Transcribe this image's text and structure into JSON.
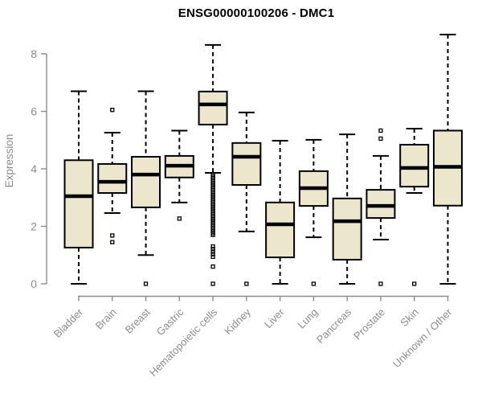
{
  "chart_data": {
    "type": "boxplot",
    "title": "ENSG00000100206 - DMC1",
    "ylabel": "Expression",
    "xlabel": "",
    "ylim": [
      0,
      8
    ],
    "yticks": [
      0,
      2,
      4,
      6,
      8
    ],
    "grid": false,
    "legend": false,
    "whisker_linestyle": "dashed",
    "outlier_marker": "open-square",
    "colors": {
      "box_fill": "#ece7cc",
      "box_border": "#000000",
      "median": "#000000",
      "axis": "#8c8c8c",
      "tick_label": "#8c8c8c",
      "title": "#000000"
    },
    "categories": [
      "Bladder",
      "Brain",
      "Breast",
      "Gastric",
      "Hematopoietic cells",
      "Kidney",
      "Liver",
      "Lung",
      "Pancreas",
      "Prostate",
      "Skin",
      "Unknown / Other"
    ],
    "boxes": [
      {
        "category": "Bladder",
        "low": 0,
        "q1": 1.26,
        "median": 3.05,
        "q3": 4.3,
        "high": 6.7,
        "outliers": []
      },
      {
        "category": "Brain",
        "low": 2.46,
        "q1": 3.16,
        "median": 3.55,
        "q3": 4.17,
        "high": 5.26,
        "outliers": [
          6.05,
          1.68,
          1.45
        ]
      },
      {
        "category": "Breast",
        "low": 1.0,
        "q1": 2.66,
        "median": 3.8,
        "q3": 4.42,
        "high": 6.7,
        "outliers": [
          0
        ]
      },
      {
        "category": "Gastric",
        "low": 2.83,
        "q1": 3.7,
        "median": 4.11,
        "q3": 4.45,
        "high": 5.33,
        "outliers": [
          2.27
        ]
      },
      {
        "category": "Hematopoietic cells",
        "low": 3.86,
        "q1": 5.54,
        "median": 6.24,
        "q3": 6.69,
        "high": 8.31,
        "outliers": [
          3.8,
          3.74,
          3.68,
          3.62,
          3.56,
          3.5,
          3.44,
          3.38,
          3.32,
          3.26,
          3.2,
          3.14,
          3.08,
          3.02,
          2.96,
          2.9,
          2.84,
          2.78,
          2.72,
          2.66,
          2.6,
          2.54,
          2.48,
          2.42,
          2.36,
          2.3,
          2.24,
          2.18,
          2.12,
          2.06,
          2.0,
          1.94,
          1.88,
          1.82,
          1.76,
          1.7,
          1.3,
          1.21,
          1.12,
          1.03,
          0.94,
          0.6,
          0
        ]
      },
      {
        "category": "Kidney",
        "low": 1.82,
        "q1": 3.44,
        "median": 4.42,
        "q3": 4.9,
        "high": 5.96,
        "outliers": [
          0
        ]
      },
      {
        "category": "Liver",
        "low": 0,
        "q1": 0.92,
        "median": 2.07,
        "q3": 2.83,
        "high": 4.98,
        "outliers": []
      },
      {
        "category": "Lung",
        "low": 1.62,
        "q1": 2.71,
        "median": 3.33,
        "q3": 3.92,
        "high": 5.01,
        "outliers": [
          0
        ]
      },
      {
        "category": "Pancreas",
        "low": 0,
        "q1": 0.84,
        "median": 2.18,
        "q3": 2.97,
        "high": 5.2,
        "outliers": []
      },
      {
        "category": "Prostate",
        "low": 1.54,
        "q1": 2.29,
        "median": 2.71,
        "q3": 3.27,
        "high": 4.45,
        "outliers": [
          5.33,
          5.05,
          0
        ]
      },
      {
        "category": "Skin",
        "low": 3.16,
        "q1": 3.38,
        "median": 4.03,
        "q3": 4.84,
        "high": 5.4,
        "outliers": [
          0
        ]
      },
      {
        "category": "Unknown / Other",
        "low": 0,
        "q1": 2.72,
        "median": 4.07,
        "q3": 5.33,
        "high": 8.67,
        "outliers": []
      }
    ]
  }
}
